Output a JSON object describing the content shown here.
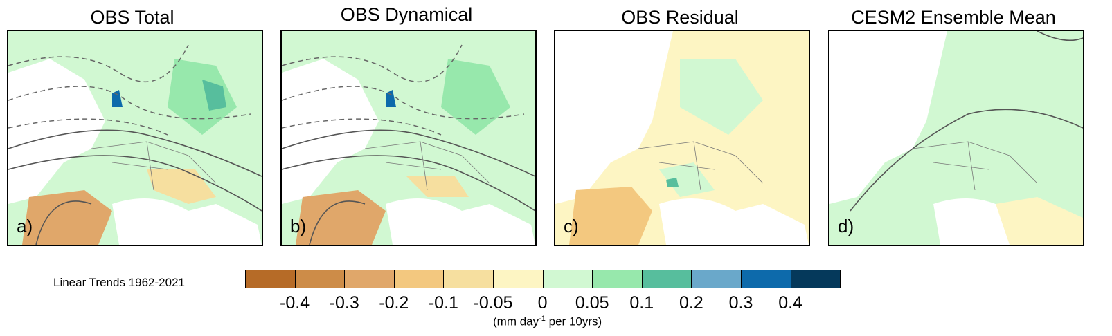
{
  "panels": [
    {
      "title": "OBS Total",
      "letter": "a)"
    },
    {
      "title": "OBS Dynamical",
      "letter": "b)"
    },
    {
      "title": "OBS Residual",
      "letter": "c)"
    },
    {
      "title": "CESM2 Ensemble Mean",
      "letter": "d)"
    }
  ],
  "legend": {
    "label": "Linear Trends 1962-2021",
    "units_prefix": "(mm day",
    "units_sup": "-1",
    "units_suffix": " per 10yrs)"
  },
  "chart_data": {
    "type": "heatmap",
    "title": "Linear Trends 1962-2021",
    "units": "mm day-1 per 10yrs",
    "colorbar": {
      "ticks": [
        "-0.4",
        "-0.3",
        "-0.2",
        "-0.1",
        "-0.05",
        "0",
        "0.05",
        "0.1",
        "0.2",
        "0.3",
        "0.4"
      ],
      "colors": [
        "#b66b27",
        "#cd8c48",
        "#e0a76a",
        "#f3c87f",
        "#f6df9f",
        "#fdf5c3",
        "#d1f8d2",
        "#97e8ac",
        "#57be9d",
        "#6aa8ca",
        "#0d6aab",
        "#05395b"
      ]
    },
    "panels": [
      "OBS Total",
      "OBS Dynamical",
      "OBS Residual",
      "CESM2 Ensemble Mean"
    ]
  }
}
